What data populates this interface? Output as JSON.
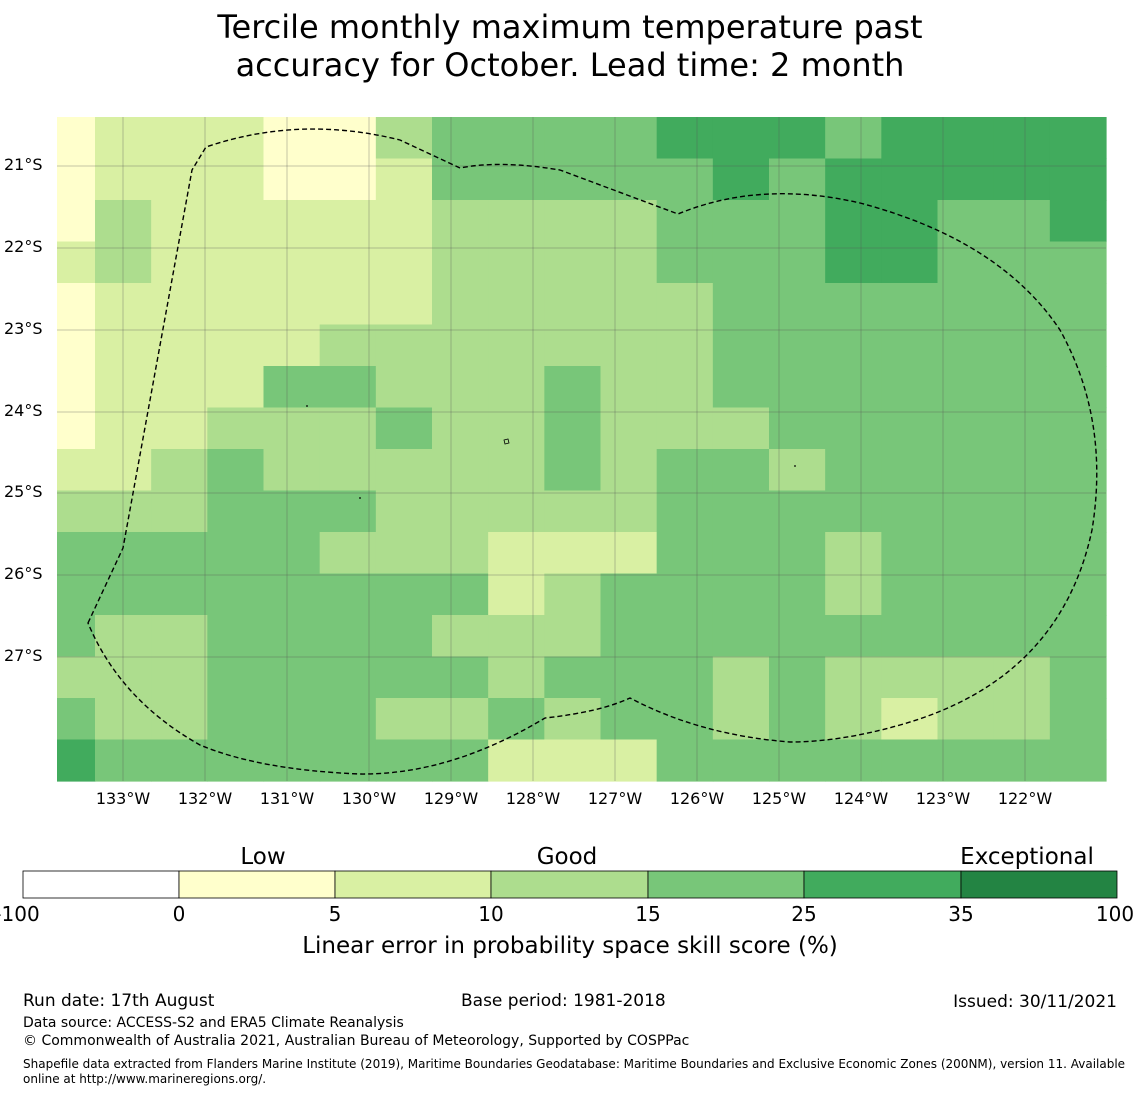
{
  "title_line1": "Tercile monthly maximum temperature past",
  "title_line2": "accuracy for October. Lead time: 2 month",
  "map": {
    "lat_labels": [
      "21°S",
      "22°S",
      "23°S",
      "24°S",
      "25°S",
      "26°S",
      "27°S"
    ],
    "lon_labels": [
      "133°W",
      "132°W",
      "131°W",
      "130°W",
      "129°W",
      "128°W",
      "127°W",
      "126°W",
      "125°W",
      "124°W",
      "123°W",
      "122°W"
    ],
    "categories_legend": "0 = 0–5 (Low), 1 = 5–10, 2 = 10–15 (Good), 3 = 15–25, 4 = 25–35, 5 = 35–100",
    "grid": [
      [
        0,
        1,
        1,
        1,
        0,
        0,
        2,
        3,
        3,
        3,
        3,
        4,
        4,
        4,
        3,
        4,
        4,
        4,
        4
      ],
      [
        0,
        1,
        1,
        1,
        0,
        0,
        1,
        3,
        3,
        3,
        3,
        3,
        4,
        3,
        4,
        4,
        4,
        4,
        4
      ],
      [
        0,
        2,
        1,
        1,
        1,
        1,
        1,
        2,
        2,
        2,
        2,
        3,
        3,
        3,
        4,
        4,
        3,
        3,
        4
      ],
      [
        1,
        2,
        1,
        1,
        1,
        1,
        1,
        2,
        2,
        2,
        2,
        3,
        3,
        3,
        4,
        4,
        3,
        3,
        3
      ],
      [
        0,
        1,
        1,
        1,
        1,
        1,
        1,
        2,
        2,
        2,
        2,
        2,
        3,
        3,
        3,
        3,
        3,
        3,
        3
      ],
      [
        0,
        1,
        1,
        1,
        1,
        2,
        2,
        2,
        2,
        2,
        2,
        2,
        3,
        3,
        3,
        3,
        3,
        3,
        3
      ],
      [
        0,
        1,
        1,
        1,
        3,
        3,
        2,
        2,
        2,
        3,
        2,
        2,
        3,
        3,
        3,
        3,
        3,
        3,
        3
      ],
      [
        0,
        1,
        1,
        2,
        2,
        2,
        3,
        2,
        2,
        3,
        2,
        2,
        2,
        3,
        3,
        3,
        3,
        3,
        3
      ],
      [
        1,
        1,
        2,
        3,
        2,
        2,
        2,
        2,
        2,
        3,
        2,
        3,
        3,
        2,
        3,
        3,
        3,
        3,
        3
      ],
      [
        2,
        2,
        2,
        3,
        3,
        3,
        2,
        2,
        2,
        2,
        2,
        3,
        3,
        3,
        3,
        3,
        3,
        3,
        3
      ],
      [
        3,
        3,
        3,
        3,
        3,
        2,
        2,
        2,
        1,
        1,
        1,
        3,
        3,
        3,
        2,
        3,
        3,
        3,
        3
      ],
      [
        3,
        3,
        3,
        3,
        3,
        3,
        3,
        3,
        1,
        2,
        3,
        3,
        3,
        3,
        2,
        3,
        3,
        3,
        3
      ],
      [
        3,
        2,
        2,
        3,
        3,
        3,
        3,
        2,
        2,
        2,
        3,
        3,
        3,
        3,
        3,
        3,
        3,
        3,
        3
      ],
      [
        2,
        2,
        2,
        3,
        3,
        3,
        3,
        3,
        2,
        3,
        3,
        3,
        2,
        3,
        2,
        2,
        2,
        2,
        3
      ],
      [
        3,
        2,
        2,
        3,
        3,
        3,
        2,
        2,
        3,
        2,
        3,
        3,
        2,
        3,
        2,
        1,
        2,
        2,
        3
      ],
      [
        4,
        3,
        3,
        3,
        3,
        3,
        3,
        3,
        1,
        1,
        1,
        3,
        3,
        3,
        3,
        3,
        3,
        3,
        3
      ]
    ],
    "colors": [
      "#ffffcc",
      "#d9f0a3",
      "#addd8e",
      "#78c679",
      "#41ab5d",
      "#238443"
    ]
  },
  "colorbar": {
    "category_labels": [
      "Low",
      "Good",
      "Exceptional"
    ],
    "tick_labels": [
      "-100",
      "0",
      "5",
      "10",
      "15",
      "25",
      "35",
      "100"
    ],
    "bin_colors": [
      "#ffffff",
      "#ffffcc",
      "#d9f0a3",
      "#addd8e",
      "#78c679",
      "#41ab5d",
      "#238443"
    ],
    "title": "Linear error in probability space skill score (%)"
  },
  "footer": {
    "run_date": "Run date: 17th August",
    "base_period": "Base period: 1981-2018",
    "issued": "Issued: 30/11/2021",
    "data_source": "Data source: ACCESS-S2 and ERA5 Climate Reanalysis",
    "copyright": "© Commonwealth of Australia 2021, Australian Bureau of Meteorology, Supported by COSPPac",
    "shapefile_note": "Shapefile data extracted from Flanders Marine Institute (2019), Maritime Boundaries Geodatabase: Maritime Boundaries and Exclusive Economic Zones (200NM), version 11. Available online at http://www.marineregions.org/."
  }
}
